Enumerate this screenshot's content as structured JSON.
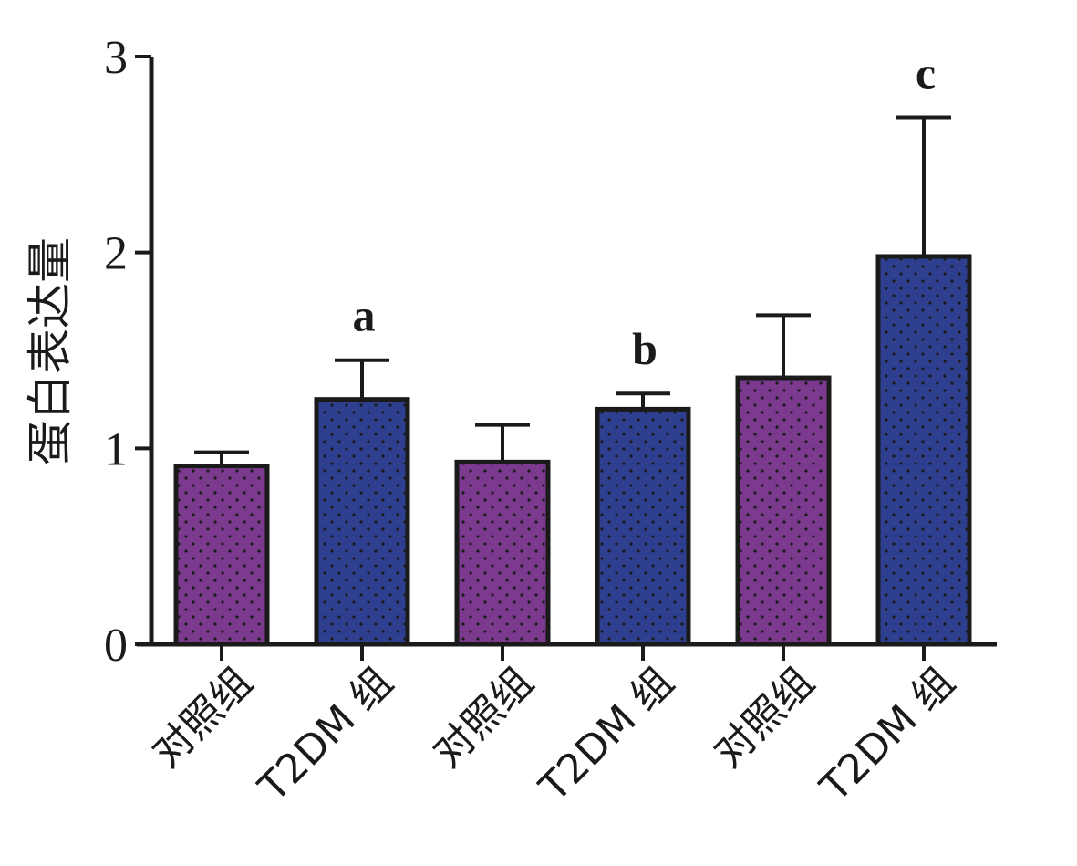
{
  "chart_data": {
    "type": "bar",
    "categories": [
      "对照组",
      "T2DM 组",
      "对照组",
      "T2DM 组",
      "对照组",
      "T2DM 组"
    ],
    "values": [
      0.91,
      1.25,
      0.93,
      1.2,
      1.36,
      1.98
    ],
    "errors": [
      0.07,
      0.2,
      0.19,
      0.08,
      0.32,
      0.71
    ],
    "significance": [
      "",
      "a",
      "",
      "b",
      "",
      "c"
    ],
    "bar_colors": [
      "#7b3a8e",
      "#2f3f8f",
      "#7b3a8e",
      "#2f3f8f",
      "#7b3a8e",
      "#2f3f8f"
    ],
    "ylabel": "蛋白表达量",
    "xlabel": "",
    "ylim": [
      0,
      3
    ],
    "yticks": [
      "0",
      "1",
      "2",
      "3"
    ],
    "grid": false,
    "legend": "none"
  }
}
